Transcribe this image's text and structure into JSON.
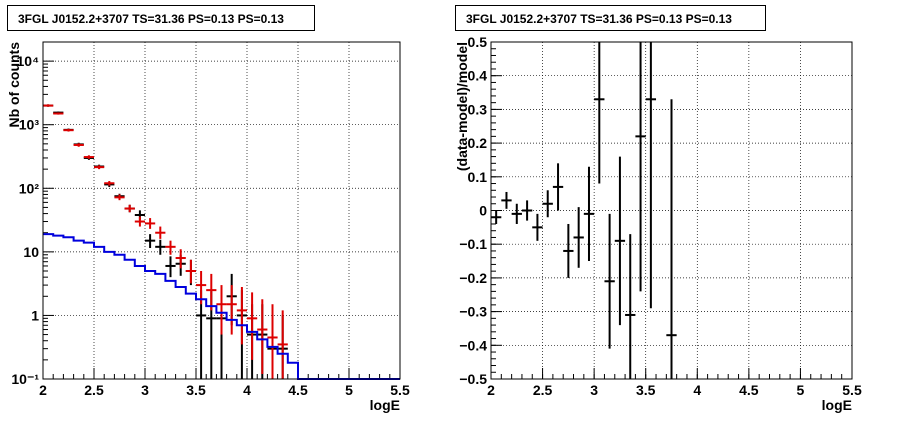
{
  "chart_data": [
    {
      "type": "line",
      "title": "3FGL J0152.2+3707 TS=31.36 PS=0.13 PS=0.13",
      "xlabel": "logE",
      "ylabel": "Nb of counts",
      "xlim": [
        2,
        5.5
      ],
      "ylim": [
        0.1,
        20000
      ],
      "yscale": "log",
      "grid": true,
      "x_ticks": [
        2,
        2.5,
        3,
        3.5,
        4,
        4.5,
        5,
        5.5
      ],
      "x_tick_labels": [
        "2",
        "2.5",
        "3",
        "3.5",
        "4",
        "4.5",
        "5",
        "5.5"
      ],
      "y_ticks": [
        0.1,
        1,
        10,
        100,
        1000,
        10000
      ],
      "y_tick_labels": [
        "10⁻¹",
        "1",
        "10",
        "10²",
        "10³",
        "10⁴"
      ],
      "series": [
        {
          "color": "#000000",
          "style": "errorbar",
          "x": [
            2.05,
            2.15,
            2.25,
            2.35,
            2.45,
            2.55,
            2.65,
            2.75,
            2.85,
            2.95,
            3.05,
            3.15,
            3.25,
            3.35,
            3.45,
            3.55,
            3.65,
            3.75,
            3.85,
            3.95,
            4.05,
            4.15,
            4.25,
            4.35
          ],
          "y": [
            2000,
            1550,
            830,
            490,
            300,
            220,
            115,
            75,
            48,
            38,
            15,
            12,
            6,
            6.5,
            5,
            1,
            0.9,
            0.9,
            2,
            1,
            0.5,
            0.5,
            0.3,
            0.3
          ],
          "y_low": [
            1920,
            1490,
            790,
            460,
            280,
            205,
            105,
            68,
            42,
            32,
            11.5,
            9,
            4,
            4.2,
            3,
            0.1,
            0.1,
            0.1,
            0.7,
            0.1,
            0.1,
            0.1,
            0.1,
            0.1
          ],
          "y_high": [
            2090,
            1610,
            870,
            520,
            320,
            235,
            125,
            82,
            55,
            45,
            19,
            15.5,
            8.5,
            9,
            7.5,
            2.5,
            2.4,
            2.4,
            4.5,
            2.5,
            1.5,
            1.5,
            1.0,
            1.0
          ]
        },
        {
          "color": "#dd0000",
          "style": "errorbar",
          "x": [
            2.05,
            2.15,
            2.25,
            2.35,
            2.45,
            2.55,
            2.65,
            2.75,
            2.85,
            2.95,
            3.05,
            3.15,
            3.25,
            3.35,
            3.45,
            3.55,
            3.65,
            3.75,
            3.85,
            3.95,
            4.05,
            4.15,
            4.25,
            4.35
          ],
          "y": [
            2000,
            1500,
            820,
            480,
            310,
            215,
            120,
            72,
            48,
            30,
            28,
            20,
            12,
            8,
            5,
            3,
            2.5,
            1.5,
            1.5,
            1.2,
            0.9,
            0.6,
            0.45,
            0.35
          ],
          "y_low": [
            1920,
            1440,
            780,
            450,
            290,
            200,
            110,
            65,
            42,
            25,
            23,
            16,
            9,
            5.5,
            3.2,
            1.5,
            1.2,
            0.5,
            0.5,
            0.35,
            0.2,
            0.12,
            0.1,
            0.1
          ],
          "y_high": [
            2090,
            1560,
            860,
            510,
            330,
            230,
            130,
            80,
            55,
            36,
            34,
            25,
            15,
            11,
            7.5,
            5,
            4.5,
            3,
            3,
            2.8,
            2.3,
            1.8,
            1.5,
            1.2
          ]
        },
        {
          "color": "#0000dd",
          "style": "step",
          "bin_edges": [
            2.0,
            2.1,
            2.2,
            2.3,
            2.4,
            2.5,
            2.6,
            2.7,
            2.8,
            2.9,
            3.0,
            3.1,
            3.2,
            3.3,
            3.4,
            3.5,
            3.6,
            3.7,
            3.8,
            3.9,
            4.0,
            4.1,
            4.2,
            4.3,
            4.4,
            4.5,
            5.5
          ],
          "values": [
            19,
            18,
            17,
            15,
            14,
            12,
            10,
            9,
            7.5,
            6,
            5,
            4.5,
            3.5,
            2.8,
            2.2,
            1.8,
            1.4,
            1.1,
            0.85,
            0.7,
            0.55,
            0.42,
            0.32,
            0.25,
            0.18,
            0.1
          ]
        }
      ]
    },
    {
      "type": "scatter",
      "title": "3FGL J0152.2+3707 TS=31.36 PS=0.13 PS=0.13",
      "xlabel": "logE",
      "ylabel": "(data-model)/model",
      "xlim": [
        2,
        5.5
      ],
      "ylim": [
        -0.5,
        0.5
      ],
      "grid": true,
      "x_ticks": [
        2,
        2.5,
        3,
        3.5,
        4,
        4.5,
        5,
        5.5
      ],
      "x_tick_labels": [
        "2",
        "2.5",
        "3",
        "3.5",
        "4",
        "4.5",
        "5",
        "5.5"
      ],
      "y_ticks": [
        -0.5,
        -0.4,
        -0.3,
        -0.2,
        -0.1,
        0,
        0.1,
        0.2,
        0.3,
        0.4,
        0.5
      ],
      "y_tick_labels": [
        "−0.5",
        "−0.4",
        "−0.3",
        "−0.2",
        "−0.1",
        "0",
        "0.1",
        "0.2",
        "0.3",
        "0.4",
        "0.5"
      ],
      "series": [
        {
          "color": "#000000",
          "style": "errorbar",
          "x": [
            2.05,
            2.15,
            2.25,
            2.35,
            2.45,
            2.55,
            2.65,
            2.75,
            2.85,
            2.95,
            3.05,
            3.15,
            3.25,
            3.35,
            3.45,
            3.55,
            3.75
          ],
          "y": [
            -0.02,
            0.03,
            -0.01,
            0.0,
            -0.05,
            0.02,
            0.07,
            -0.12,
            -0.08,
            -0.01,
            0.33,
            -0.21,
            -0.09,
            -0.31,
            0.22,
            0.33,
            -0.37
          ],
          "y_err": [
            0.02,
            0.025,
            0.03,
            0.03,
            0.04,
            0.04,
            0.07,
            0.08,
            0.09,
            0.14,
            0.25,
            0.2,
            0.25,
            0.24,
            0.46,
            0.62,
            0.7
          ]
        }
      ]
    }
  ]
}
